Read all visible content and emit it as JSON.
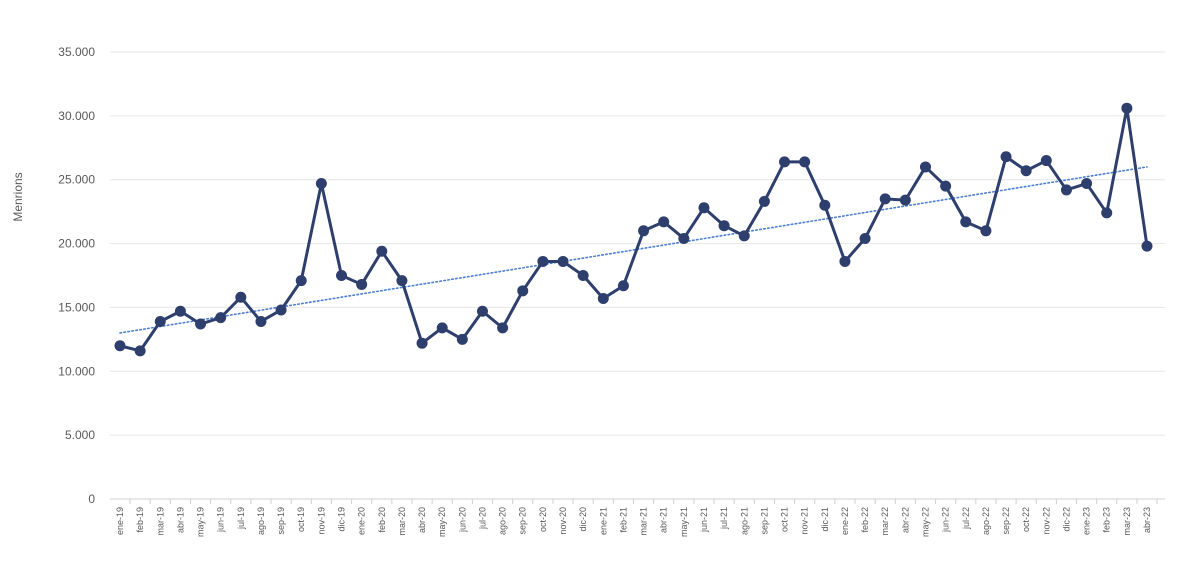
{
  "chart_data": {
    "type": "line",
    "title": "",
    "xlabel": "",
    "ylabel": "Menrions",
    "ylim": [
      0,
      35000
    ],
    "yticks": [
      {
        "value": 0,
        "label": "0"
      },
      {
        "value": 5000,
        "label": "5.000"
      },
      {
        "value": 10000,
        "label": "10.000"
      },
      {
        "value": 15000,
        "label": "15.000"
      },
      {
        "value": 20000,
        "label": "20.000"
      },
      {
        "value": 25000,
        "label": "25.000"
      },
      {
        "value": 30000,
        "label": "30.000"
      },
      {
        "value": 35000,
        "label": "35.000"
      }
    ],
    "grid": true,
    "categories": [
      "ene-19",
      "feb-19",
      "mar-19",
      "abr-19",
      "may-19",
      "jun-19",
      "jul-19",
      "ago-19",
      "sep-19",
      "oct-19",
      "nov-19",
      "dic-19",
      "ene-20",
      "feb-20",
      "mar-20",
      "abr-20",
      "may-20",
      "jun-20",
      "jul-20",
      "ago-20",
      "sep-20",
      "oct-20",
      "nov-20",
      "dic-20",
      "ene-21",
      "feb-21",
      "mar-21",
      "abr-21",
      "may-21",
      "jun-21",
      "jul-21",
      "ago-21",
      "sep-21",
      "oct-21",
      "nov-21",
      "dic-21",
      "ene-22",
      "feb-22",
      "mar-22",
      "abr-22",
      "may-22",
      "jun-22",
      "jul-22",
      "ago-22",
      "sep-22",
      "oct-22",
      "nov-22",
      "dic-22",
      "ene-23",
      "feb-23",
      "mar-23",
      "abr-23"
    ],
    "series": [
      {
        "values": [
          12000,
          11600,
          13900,
          14700,
          13700,
          14200,
          15800,
          13900,
          14800,
          17100,
          24700,
          17500,
          16800,
          19400,
          17100,
          12200,
          13400,
          12500,
          14700,
          13400,
          16300,
          18600,
          18600,
          17500,
          15700,
          16700,
          21000,
          21700,
          20400,
          22800,
          21400,
          20600,
          23300,
          26400,
          26400,
          23000,
          18600,
          20400,
          23500,
          23400,
          26000,
          24500,
          21700,
          21000,
          26800,
          25700,
          26500,
          24200,
          24700,
          22400,
          30600,
          19800
        ],
        "color": "#2e3f6e"
      }
    ],
    "trendline": {
      "type": "linear",
      "start_value": 13000,
      "end_value": 26000,
      "color": "#4a7fd4",
      "style": "dotted"
    }
  }
}
